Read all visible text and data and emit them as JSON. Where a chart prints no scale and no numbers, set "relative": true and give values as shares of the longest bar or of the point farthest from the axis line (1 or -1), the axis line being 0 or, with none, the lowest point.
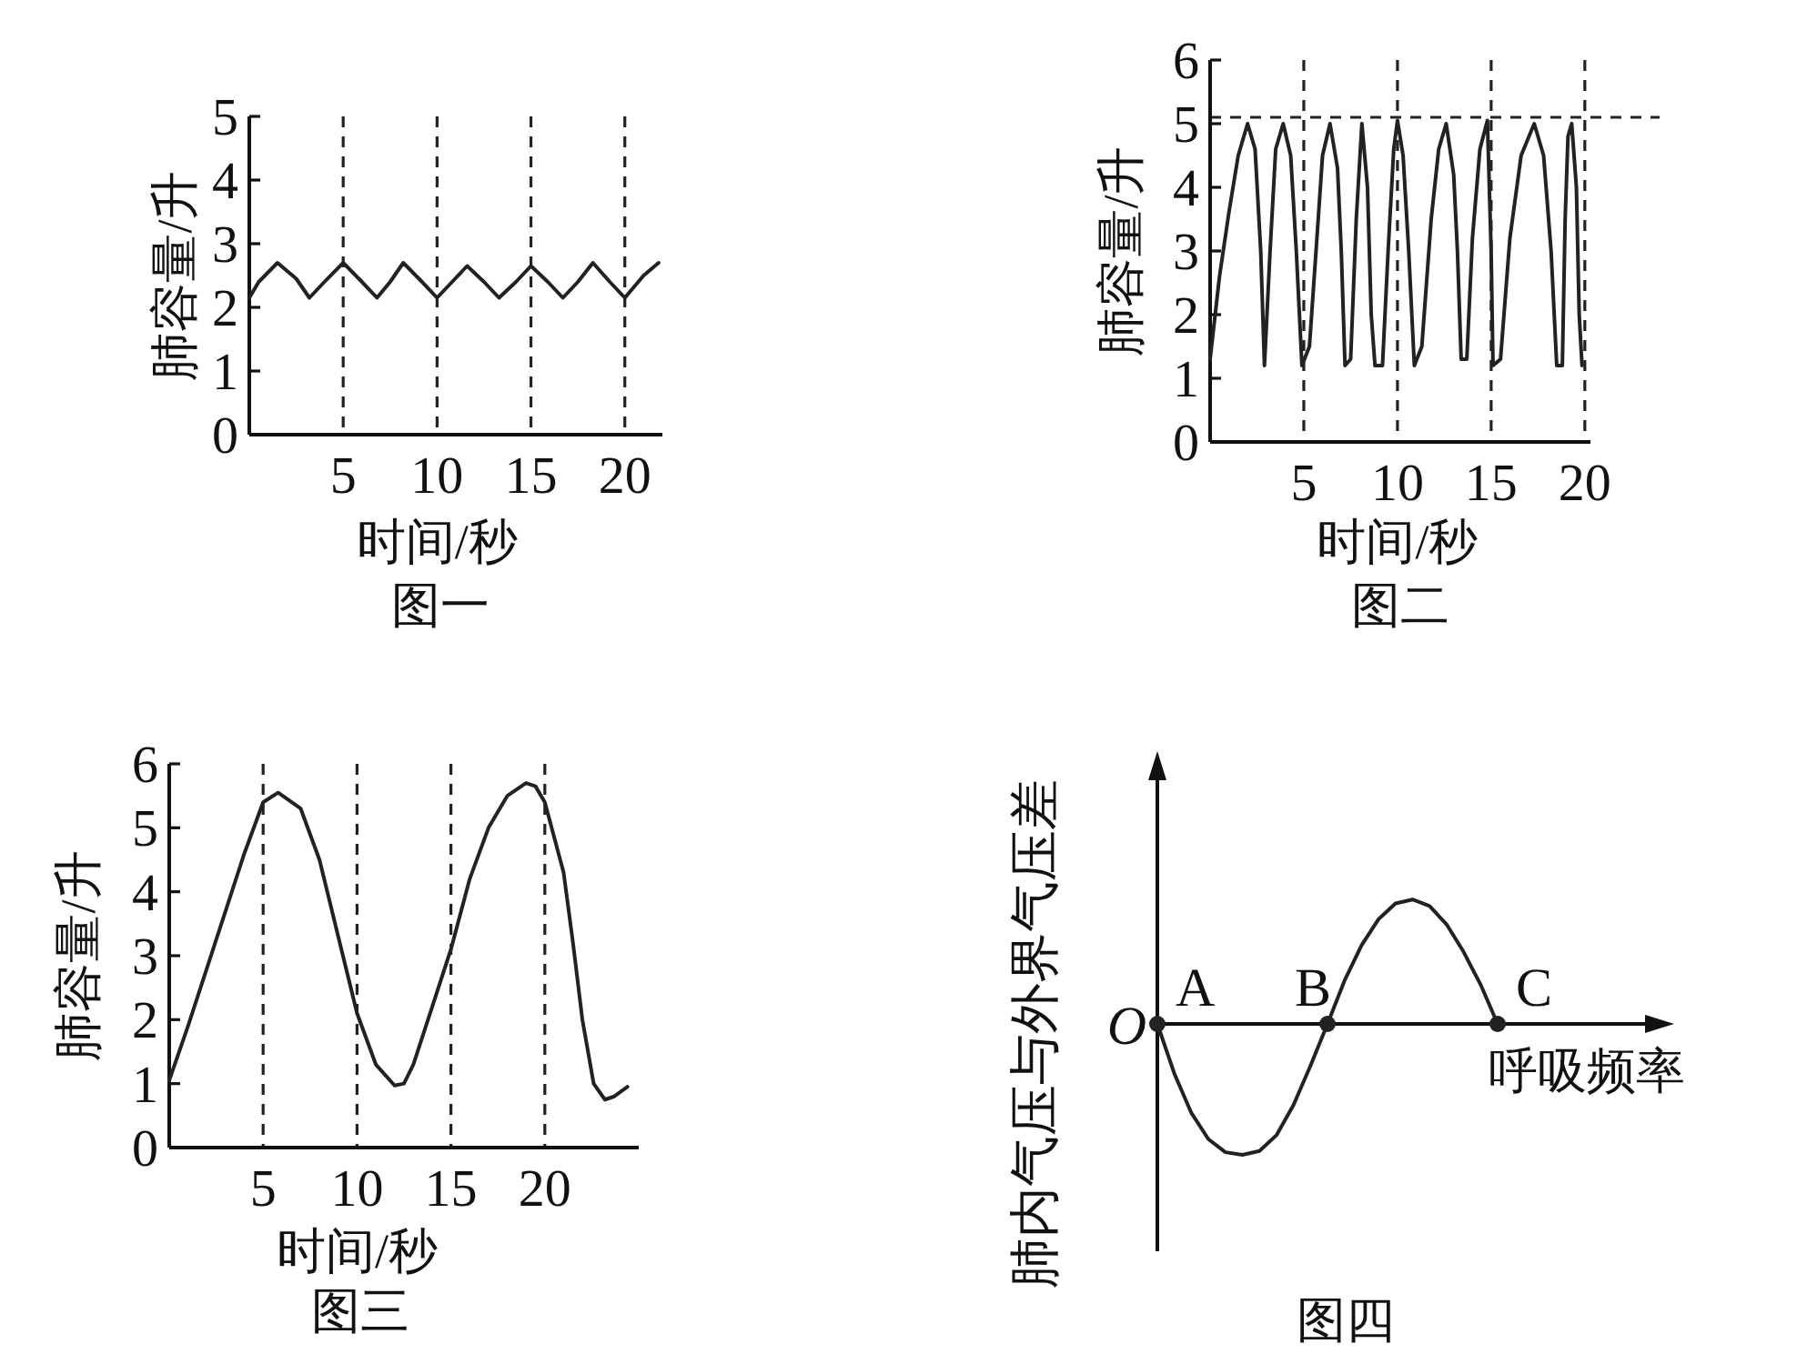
{
  "chart_data": [
    {
      "type": "line",
      "title": "图一",
      "xlabel": "时间/秒",
      "ylabel": "肺容量/升",
      "xlim": [
        0,
        22
      ],
      "ylim": [
        0,
        5
      ],
      "xticks": [
        5,
        10,
        15,
        20
      ],
      "yticks": [
        0,
        1,
        2,
        3,
        4,
        5
      ],
      "color": "#222222",
      "x": [
        0,
        0.5,
        1.5,
        2.5,
        3.2,
        4,
        5,
        6,
        6.8,
        7.5,
        8.2,
        9.2,
        10,
        10.8,
        11.6,
        12.5,
        13.3,
        14.2,
        15,
        15.9,
        16.7,
        17.5,
        18.3,
        19.2,
        20,
        21,
        21.8
      ],
      "values": [
        2.15,
        2.4,
        2.7,
        2.45,
        2.15,
        2.4,
        2.7,
        2.4,
        2.15,
        2.4,
        2.7,
        2.4,
        2.15,
        2.4,
        2.65,
        2.4,
        2.15,
        2.4,
        2.65,
        2.4,
        2.15,
        2.4,
        2.7,
        2.4,
        2.15,
        2.5,
        2.7
      ],
      "ref_lines": [
        {
          "axis": "x",
          "value": 5,
          "line_style": "dashed"
        },
        {
          "axis": "x",
          "value": 10,
          "line_style": "dashed"
        },
        {
          "axis": "x",
          "value": 15,
          "line_style": "dashed"
        },
        {
          "axis": "x",
          "value": 20,
          "line_style": "dashed"
        }
      ]
    },
    {
      "type": "line",
      "title": "图二",
      "xlabel": "时间/秒",
      "ylabel": "肺容量/升",
      "xlim": [
        0,
        20.3
      ],
      "ylim": [
        0,
        6
      ],
      "xticks": [
        5,
        10,
        15,
        20
      ],
      "yticks": [
        0,
        1,
        2,
        3,
        4,
        5,
        6
      ],
      "color": "#222222",
      "x": [
        0,
        0.5,
        1,
        1.5,
        2,
        2.4,
        2.7,
        2.9,
        3.2,
        3.5,
        3.9,
        4.3,
        4.6,
        4.9,
        5.3,
        5.7,
        6.0,
        6.4,
        6.8,
        7.0,
        7.2,
        7.5,
        7.8,
        8.1,
        8.4,
        8.6,
        8.8,
        9.2,
        9.5,
        9.8,
        10,
        10.3,
        10.6,
        10.9,
        11.3,
        11.8,
        12.2,
        12.6,
        13,
        13.2,
        13.4,
        13.7,
        14.0,
        14.4,
        14.8,
        15.0,
        15.1,
        15.5,
        16,
        16.6,
        17.3,
        17.8,
        18.2,
        18.5,
        18.8,
        18.95,
        19.1,
        19.3,
        19.55,
        19.7,
        19.85
      ],
      "values": [
        1.3,
        2.6,
        3.6,
        4.5,
        5,
        4.6,
        3,
        1.2,
        3,
        4.6,
        5,
        4.5,
        3,
        1.2,
        1.5,
        3.2,
        4.5,
        5,
        4.3,
        3,
        1.2,
        1.3,
        3.5,
        5,
        4,
        2,
        1.2,
        1.2,
        3,
        4.6,
        5.05,
        4.5,
        3,
        1.2,
        1.5,
        3.5,
        4.6,
        5,
        4.2,
        3,
        1.3,
        1.3,
        3.2,
        4.6,
        5.05,
        3,
        1.2,
        1.3,
        3.2,
        4.5,
        5,
        4.5,
        3,
        1.2,
        1.2,
        3.5,
        4.8,
        5,
        4,
        2,
        1.2
      ],
      "ref_lines": [
        {
          "axis": "x",
          "value": 5,
          "line_style": "dashed"
        },
        {
          "axis": "x",
          "value": 10,
          "line_style": "dashed"
        },
        {
          "axis": "x",
          "value": 15,
          "line_style": "dashed"
        },
        {
          "axis": "x",
          "value": 20,
          "line_style": "dashed"
        },
        {
          "axis": "y",
          "value": 5.1,
          "line_style": "dashed"
        }
      ]
    },
    {
      "type": "line",
      "title": "图三",
      "xlabel": "时间/秒",
      "ylabel": "肺容量/升",
      "xlim": [
        0,
        25
      ],
      "ylim": [
        0,
        6
      ],
      "xticks": [
        5,
        10,
        15,
        20
      ],
      "yticks": [
        0,
        1,
        2,
        3,
        4,
        5,
        6
      ],
      "color": "#222222",
      "x": [
        0,
        1,
        2,
        3,
        4,
        5,
        5.8,
        7,
        8,
        9,
        10,
        11,
        12,
        12.5,
        13,
        14,
        15,
        16,
        17,
        18,
        19,
        19.5,
        20,
        21,
        21.5,
        22,
        22.6,
        23.2,
        23.7,
        24.4
      ],
      "values": [
        1.05,
        1.9,
        2.8,
        3.7,
        4.6,
        5.4,
        5.55,
        5.3,
        4.5,
        3.3,
        2.1,
        1.3,
        0.97,
        1.0,
        1.3,
        2.2,
        3.1,
        4.2,
        5.0,
        5.5,
        5.7,
        5.65,
        5.4,
        4.3,
        3.2,
        2.0,
        1.0,
        0.75,
        0.8,
        0.95
      ],
      "ref_lines": [
        {
          "axis": "x",
          "value": 5,
          "line_style": "dashed"
        },
        {
          "axis": "x",
          "value": 10,
          "line_style": "dashed"
        },
        {
          "axis": "x",
          "value": 15,
          "line_style": "dashed"
        },
        {
          "axis": "x",
          "value": 20,
          "line_style": "dashed"
        }
      ]
    },
    {
      "type": "line",
      "title": "图四",
      "xlabel": "呼吸频率",
      "ylabel": "肺内气压与外界气压差",
      "relative": true,
      "categories": [
        null,
        null,
        null,
        null,
        null,
        null,
        null,
        null,
        null,
        null,
        null,
        null,
        null,
        null,
        null,
        null,
        null,
        null,
        null,
        null,
        null
      ],
      "series": [
        {
          "type": "line",
          "color": "#222222",
          "values": [
            0,
            -0.38,
            -0.68,
            -0.88,
            -0.98,
            -1,
            -0.97,
            -0.85,
            -0.62,
            -0.32,
            0,
            0.33,
            0.6,
            0.8,
            0.92,
            0.95,
            0.9,
            0.76,
            0.55,
            0.3,
            0
          ]
        }
      ],
      "annotations": [
        "O",
        "A",
        "B",
        "C"
      ]
    }
  ]
}
